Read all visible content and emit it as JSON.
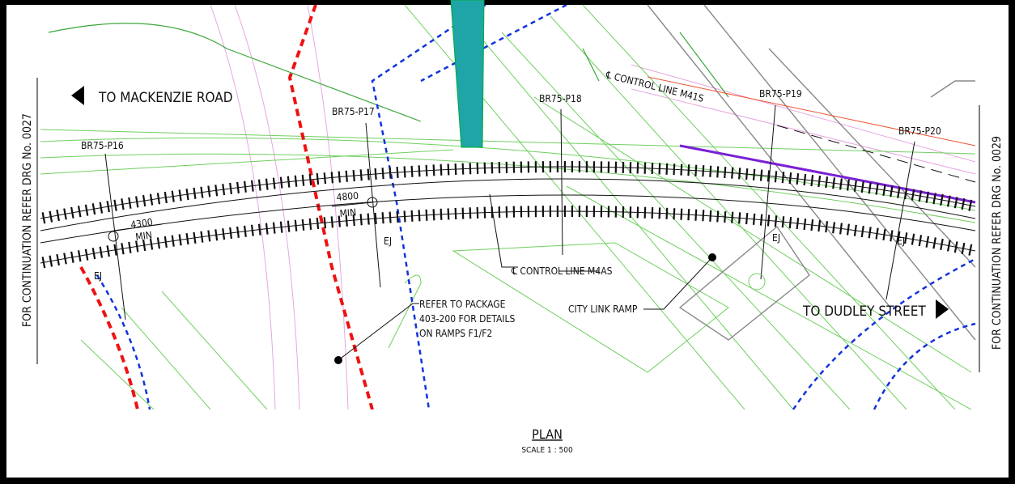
{
  "drawing": {
    "direction_left": "TO MACKENZIE ROAD",
    "direction_right": "TO DUDLEY STREET",
    "continuation_left": "FOR CONTINUATION REFER DRG No. 0027",
    "continuation_right": "FOR CONTINUATION REFER DRG No. 0029",
    "piers": [
      "BR75-P16",
      "BR75-P17",
      "BR75-P18",
      "BR75-P19",
      "BR75-P20"
    ],
    "control_line_upper": "℄ CONTROL LINE M41S",
    "control_line_lower": "℄ CONTROL LINE M4AS",
    "dimensions": [
      {
        "value": "4300",
        "unit": "MIN"
      },
      {
        "value": "4800",
        "unit": "MIN"
      }
    ],
    "joints": [
      "EJ",
      "EJ",
      "EJ",
      "EJ"
    ],
    "note": [
      "REFER TO PACKAGE",
      "403-200 FOR DETAILS",
      "ON RAMPS F1/F2"
    ],
    "ramp_label": "CITY LINK RAMP",
    "view_title": "PLAN",
    "scale": "SCALE  1 : 500"
  }
}
